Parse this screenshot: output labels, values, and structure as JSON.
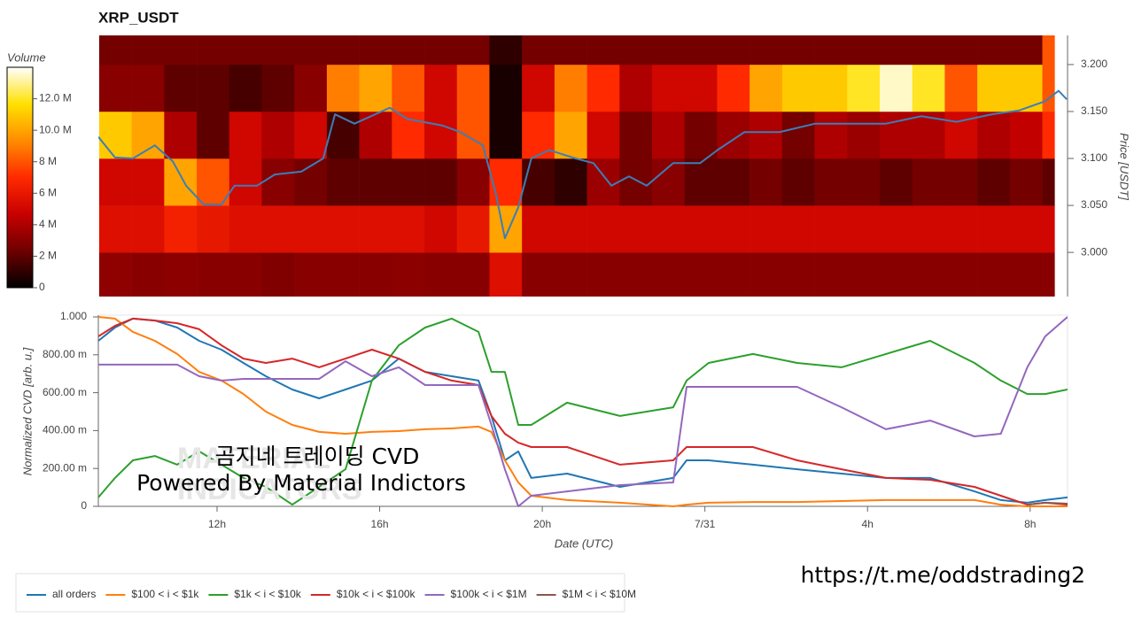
{
  "chart_data": [
    {
      "type": "heatmap",
      "title": "XRP_USDT",
      "x_bins": [
        9.1,
        9.9,
        10.7,
        11.5,
        12.3,
        13.1,
        13.9,
        14.7,
        15.5,
        16.3,
        17.1,
        17.9,
        18.7,
        19.5,
        20.3,
        21.1,
        21.9,
        22.7,
        23.5,
        24.3,
        25.1,
        25.9,
        26.7,
        27.5,
        28.3,
        29.1,
        29.9,
        30.7,
        31.5,
        32.3,
        32.6
      ],
      "y_bins": [
        2.95,
        3.0,
        3.05,
        3.1,
        3.15,
        3.2,
        3.25
      ],
      "z": [
        [
          3.2,
          3,
          3.1,
          3,
          3,
          2.8,
          3,
          3,
          3,
          3.1,
          3,
          3,
          5.5,
          3,
          3,
          3,
          3,
          3,
          3,
          3,
          3,
          3,
          3,
          3,
          3,
          3,
          3,
          3,
          3,
          3
        ],
        [
          5.5,
          5.5,
          6.5,
          6,
          5.5,
          5.5,
          5.5,
          5.5,
          5.5,
          5.5,
          5,
          6,
          10,
          5,
          5,
          5,
          5,
          5,
          5,
          5,
          5,
          5,
          5,
          5,
          5,
          5,
          5,
          5,
          5,
          5
        ],
        [
          5,
          5,
          10,
          8,
          5,
          3,
          2.5,
          2,
          2,
          2,
          2,
          3,
          7,
          1.5,
          1,
          3.5,
          2.5,
          3,
          2,
          2,
          2.5,
          2,
          2.5,
          2.5,
          2,
          2.5,
          2.5,
          2,
          2.5,
          2
        ],
        [
          11,
          10,
          4,
          2,
          5,
          4,
          5,
          1.5,
          4,
          7,
          5,
          8,
          0.5,
          7,
          10,
          5,
          2.5,
          4,
          2.5,
          3.5,
          4,
          2.5,
          4,
          3.5,
          4,
          4,
          5,
          4,
          4.5,
          7
        ],
        [
          3,
          3,
          2,
          2,
          1.5,
          2,
          3,
          9,
          10,
          8,
          5,
          8,
          0.5,
          5,
          9,
          7,
          4,
          5,
          5,
          7,
          10,
          11,
          11,
          12,
          13.5,
          12,
          8,
          11,
          11,
          8
        ],
        [
          2.5,
          2.5,
          2.5,
          2.5,
          2.5,
          2.5,
          2.5,
          2.5,
          2.5,
          2.5,
          2.5,
          2.5,
          1,
          2.5,
          2.5,
          2.5,
          2.5,
          2.5,
          2.5,
          2.5,
          2.5,
          2.5,
          2.5,
          2.5,
          2.5,
          2.5,
          2.5,
          2.5,
          2.5,
          8
        ]
      ],
      "colormap": [
        "#000000",
        "#6e0000",
        "#c80000",
        "#ff2a00",
        "#ff8c00",
        "#ffe100",
        "#ffffff"
      ],
      "colorbar": {
        "title": "Volume",
        "lim": [
          0,
          14
        ],
        "ticks": [
          0,
          {
            "value": 2,
            "label": "2 M"
          },
          {
            "value": 4,
            "label": "4 M"
          },
          {
            "value": 6,
            "label": "6 M"
          },
          {
            "value": 8,
            "label": "8 M"
          },
          {
            "value": 10,
            "label": "10.0 M"
          },
          {
            "value": 12,
            "label": "12.0 M"
          }
        ]
      },
      "xlim": [
        9.08,
        32.92
      ],
      "ylim": [
        2.953,
        3.231
      ],
      "yticks": [
        {
          "value": 3,
          "label": "3.000"
        },
        {
          "value": 3.05,
          "label": "3.050"
        },
        {
          "value": 3.1,
          "label": "3.100"
        },
        {
          "value": 3.15,
          "label": "3.150"
        },
        {
          "value": 3.2,
          "label": "3.200"
        }
      ],
      "y_axis_label": "Price [USDT]",
      "y_axis_side": "right",
      "line": {
        "color": "#3a7fb8",
        "x": [
          9.08,
          9.49,
          9.93,
          10.47,
          10.91,
          11.24,
          11.67,
          12.11,
          12.43,
          12.98,
          13.42,
          14.07,
          14.61,
          14.9,
          15.38,
          16.25,
          16.68,
          17.55,
          17.99,
          18.54,
          18.86,
          19.08,
          19.41,
          19.73,
          20.17,
          20.82,
          21.26,
          21.7,
          22.13,
          22.57,
          23.22,
          23.88,
          24.31,
          24.97,
          25.83,
          26.71,
          27.58,
          28.45,
          29.32,
          30.19,
          31.06,
          31.72,
          32.37,
          32.7,
          32.9
        ],
        "values": [
          3.123,
          3.101,
          3.1,
          3.114,
          3.097,
          3.071,
          3.051,
          3.051,
          3.071,
          3.071,
          3.083,
          3.086,
          3.1,
          3.147,
          3.137,
          3.154,
          3.142,
          3.135,
          3.128,
          3.114,
          3.062,
          3.015,
          3.048,
          3.1,
          3.109,
          3.1,
          3.095,
          3.071,
          3.081,
          3.071,
          3.095,
          3.095,
          3.109,
          3.128,
          3.128,
          3.137,
          3.137,
          3.137,
          3.145,
          3.139,
          3.147,
          3.151,
          3.161,
          3.172,
          3.163
        ]
      }
    },
    {
      "type": "line",
      "x": [
        9.08,
        9.49,
        9.93,
        10.47,
        11.02,
        11.56,
        12.11,
        12.65,
        13.2,
        13.85,
        14.51,
        15.16,
        15.81,
        16.47,
        17.12,
        17.77,
        18.43,
        18.75,
        19.08,
        19.41,
        19.73,
        20.61,
        21.91,
        23.22,
        23.55,
        24.09,
        25.18,
        26.27,
        27.36,
        28.45,
        29.54,
        30.63,
        31.28,
        31.93,
        32.37,
        32.92
      ],
      "series": [
        {
          "name": "all orders",
          "color": "#1f77b4",
          "values": [
            0.874,
            0.944,
            0.991,
            0.981,
            0.944,
            0.874,
            0.827,
            0.757,
            0.687,
            0.617,
            0.57,
            0.617,
            0.664,
            0.78,
            0.71,
            0.687,
            0.664,
            0.477,
            0.243,
            0.29,
            0.15,
            0.173,
            0.103,
            0.15,
            0.243,
            0.243,
            0.22,
            0.196,
            0.173,
            0.15,
            0.15,
            0.079,
            0.033,
            0.019,
            0.033,
            0.047
          ]
        },
        {
          "name": "$100 < i < $1k",
          "color": "#ff7f0e",
          "values": [
            1.0,
            0.991,
            0.921,
            0.874,
            0.804,
            0.71,
            0.664,
            0.593,
            0.5,
            0.43,
            0.393,
            0.383,
            0.393,
            0.397,
            0.407,
            0.411,
            0.421,
            0.393,
            0.243,
            0.126,
            0.056,
            0.033,
            0.019,
            0,
            0.009,
            0.019,
            0.023,
            0.023,
            0.028,
            0.033,
            0.033,
            0.033,
            0.009,
            0,
            0,
            0
          ]
        },
        {
          "name": "$1k < i < $10k",
          "color": "#2ca02c",
          "values": [
            0.047,
            0.15,
            0.243,
            0.266,
            0.22,
            0.29,
            0.22,
            0.15,
            0.103,
            0.009,
            0.103,
            0.196,
            0.664,
            0.85,
            0.944,
            0.991,
            0.921,
            0.71,
            0.71,
            0.43,
            0.43,
            0.547,
            0.477,
            0.523,
            0.664,
            0.757,
            0.804,
            0.757,
            0.734,
            0.804,
            0.874,
            0.757,
            0.664,
            0.593,
            0.593,
            0.617
          ]
        },
        {
          "name": "$10k < i < $100k",
          "color": "#d62728",
          "values": [
            0.897,
            0.953,
            0.991,
            0.981,
            0.967,
            0.935,
            0.85,
            0.78,
            0.757,
            0.78,
            0.734,
            0.78,
            0.827,
            0.78,
            0.71,
            0.664,
            0.64,
            0.477,
            0.383,
            0.336,
            0.313,
            0.313,
            0.22,
            0.243,
            0.313,
            0.313,
            0.313,
            0.243,
            0.196,
            0.15,
            0.14,
            0.103,
            0.056,
            0.009,
            0.019,
            0.009
          ]
        },
        {
          "name": "$100k < i < $1M",
          "color": "#9467bd",
          "values": [
            0.748,
            0.748,
            0.748,
            0.748,
            0.748,
            0.687,
            0.664,
            0.673,
            0.673,
            0.673,
            0.673,
            0.766,
            0.687,
            0.734,
            0.64,
            0.64,
            0.64,
            0.43,
            0.196,
            0,
            0.056,
            0.079,
            0.112,
            0.126,
            0.631,
            0.631,
            0.631,
            0.631,
            0.523,
            0.407,
            0.453,
            0.369,
            0.383,
            0.734,
            0.897,
            1.0
          ]
        },
        {
          "name": "$1M < i < $10M",
          "color": "#8c564b",
          "values": [
            null,
            null,
            null,
            null,
            null,
            null,
            null,
            null,
            null,
            null,
            null,
            null,
            null,
            null,
            null,
            null,
            null,
            null,
            null,
            null,
            null,
            null,
            null,
            null,
            null,
            null,
            null,
            null,
            null,
            null,
            null,
            null,
            null,
            0.009,
            0.019,
            0.014
          ]
        }
      ],
      "xlim": [
        9.08,
        32.92
      ],
      "xticks": [
        {
          "value": 12,
          "label": "12h"
        },
        {
          "value": 16,
          "label": "16h"
        },
        {
          "value": 20,
          "label": "20h"
        },
        {
          "value": 24,
          "label": "7/31"
        },
        {
          "value": 28,
          "label": "4h"
        },
        {
          "value": 32,
          "label": "8h"
        }
      ],
      "ylim": [
        0,
        1
      ],
      "yticks": [
        0,
        {
          "value": 0.2,
          "label": "200.00 m"
        },
        {
          "value": 0.4,
          "label": "400.00 m"
        },
        {
          "value": 0.6,
          "label": "600.00 m"
        },
        {
          "value": 0.8,
          "label": "800.00 m"
        },
        {
          "value": 1,
          "label": "1.000"
        }
      ],
      "x_axis_label": "Date (UTC)",
      "y_axis_label": "Normalized CVD [arb. u.]",
      "legend": "bottom-left"
    }
  ],
  "watermark": [
    "곰지네 트레이딩 CVD",
    "Powered By Material Indictors"
  ],
  "watermark_logo": [
    "MATERIAL",
    "INDICATORS"
  ],
  "footer_url": "https://t.me/oddstrading2"
}
